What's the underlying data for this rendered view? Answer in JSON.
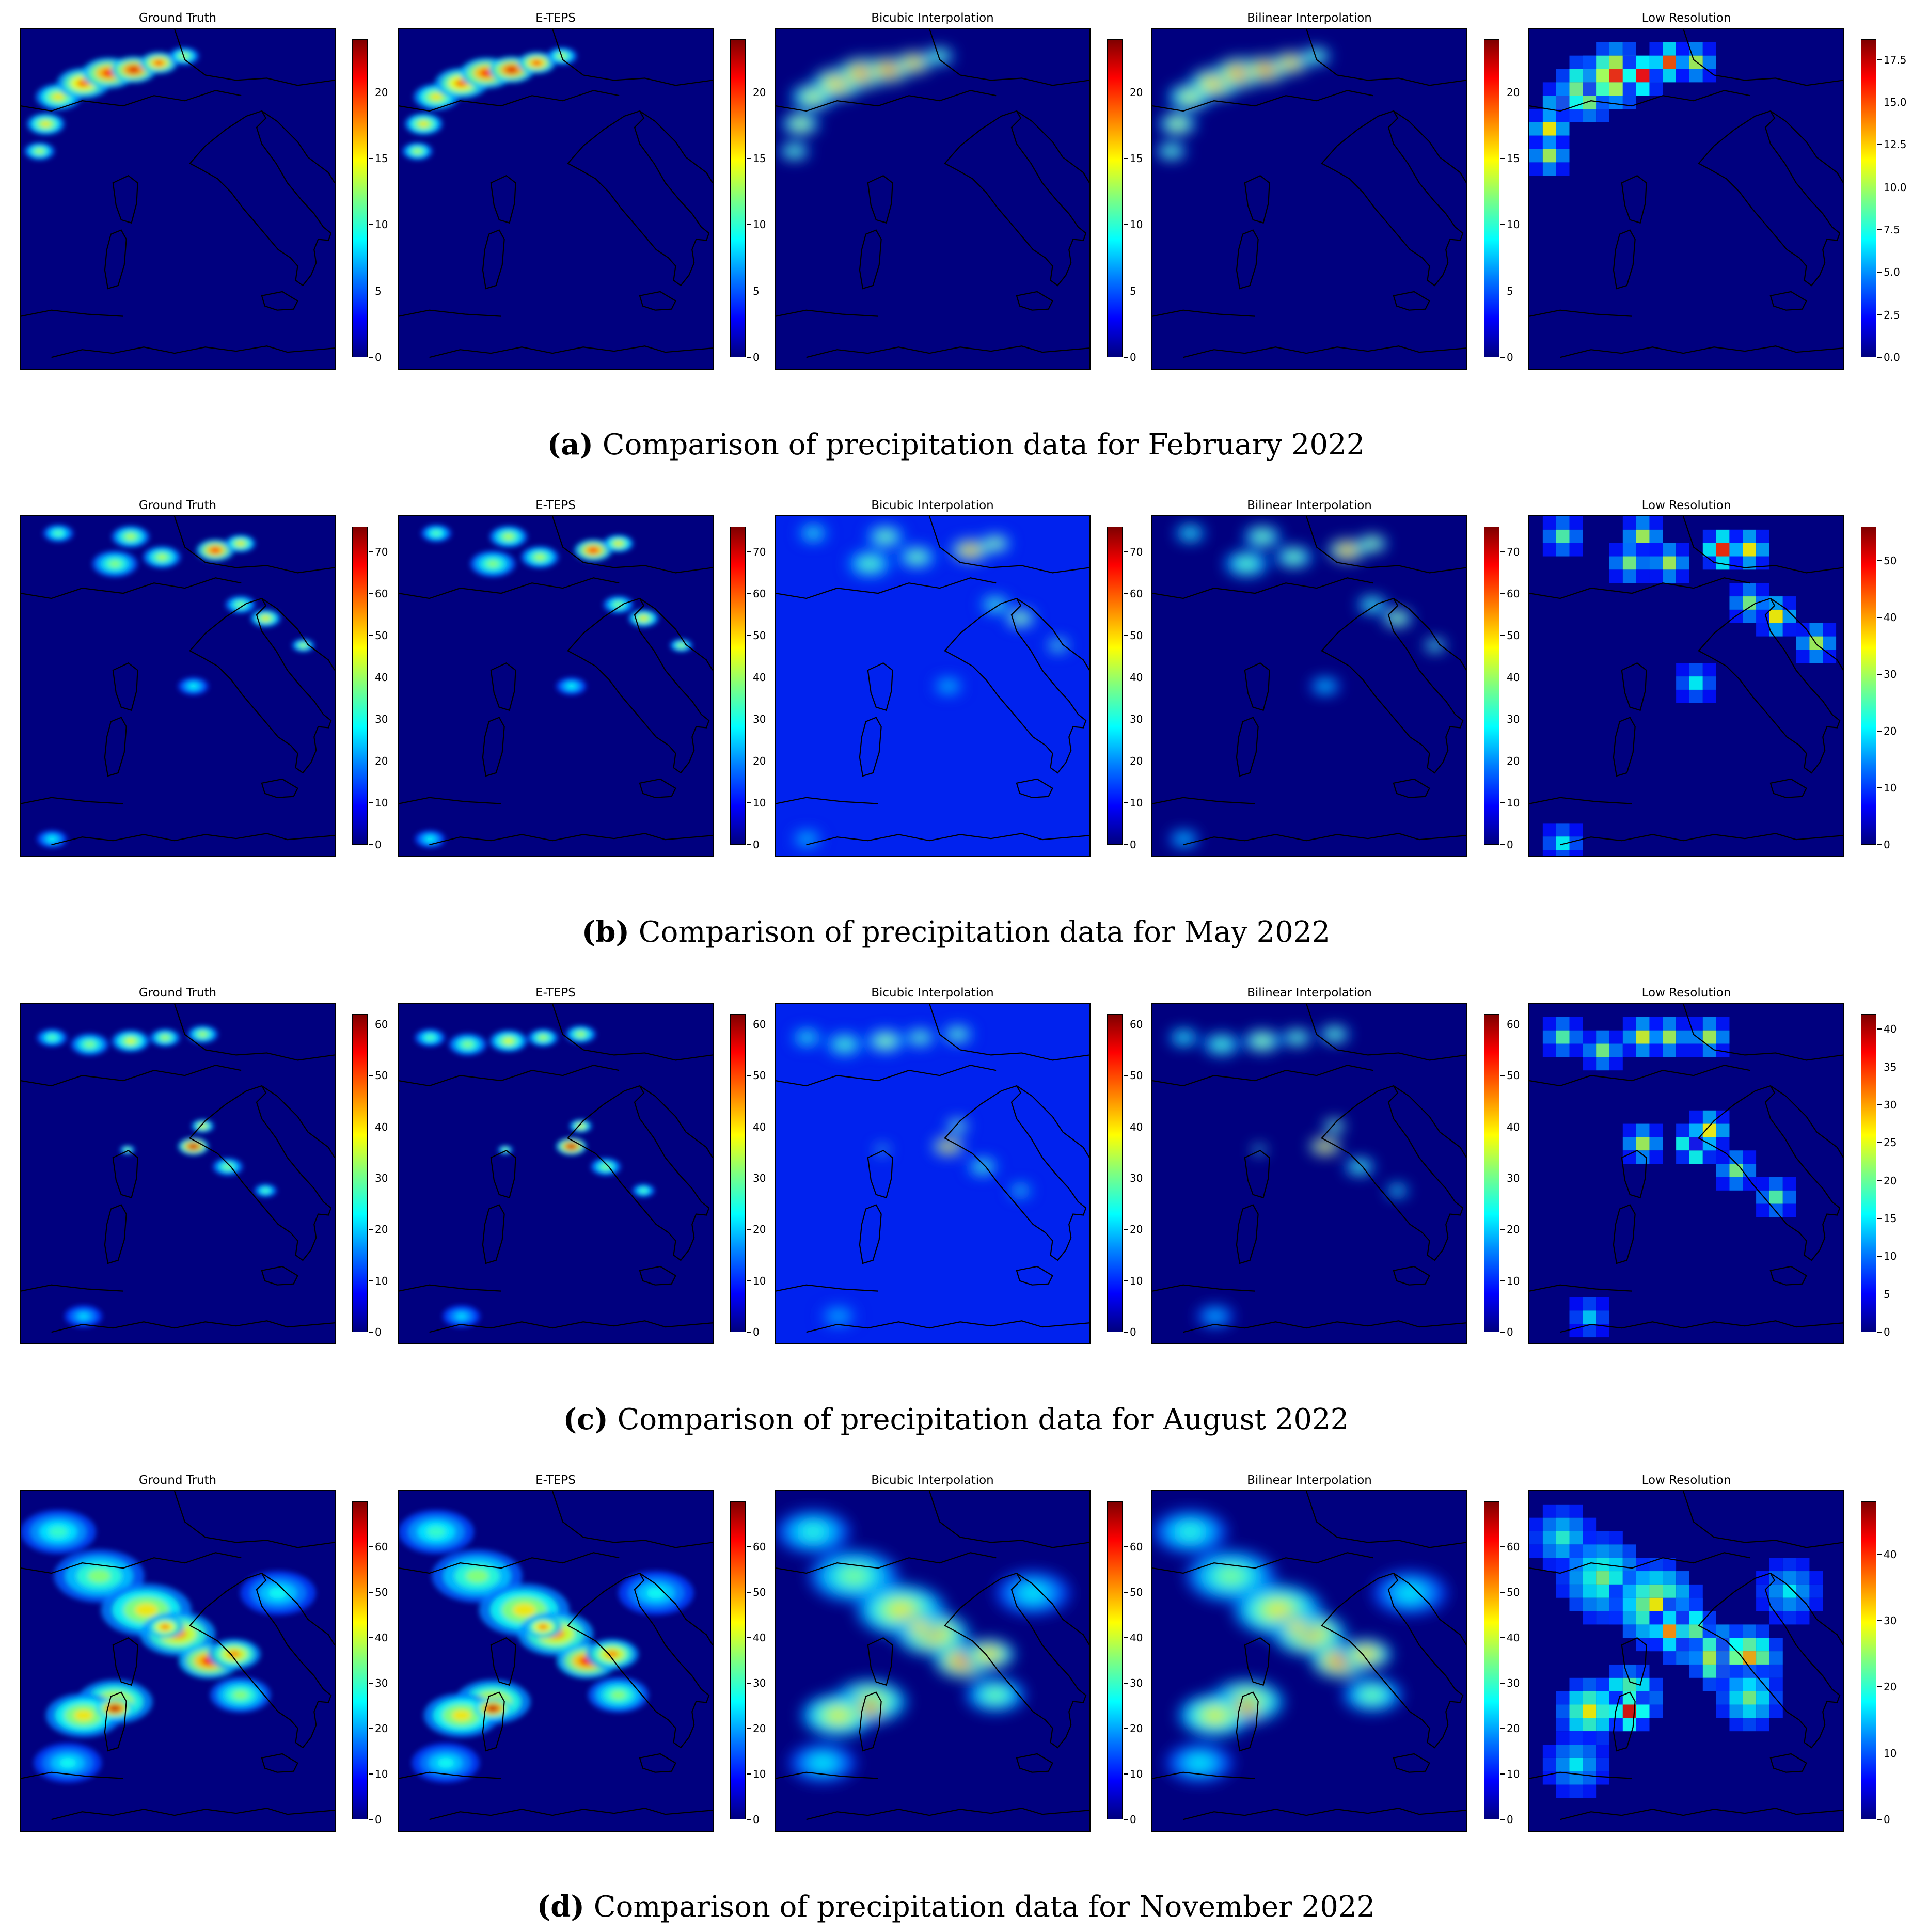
{
  "figure": {
    "captions": [
      {
        "label": "a",
        "text": "Comparison of precipitation data for February 2022"
      },
      {
        "label": "b",
        "text": "Comparison of precipitation data for May 2022"
      },
      {
        "label": "c",
        "text": "Comparison of precipitation data for August 2022"
      },
      {
        "label": "d",
        "text": "Comparison of precipitation data for November 2022"
      }
    ]
  },
  "colors": {
    "background": "#00007f",
    "bicubic_background": "#0022ee",
    "coastline": "#000000"
  },
  "chart_data": [
    {
      "type": "heatmap",
      "colormap": "jet",
      "month": "February 2022",
      "panels": [
        {
          "title": "Ground Truth",
          "cmax": 24,
          "ticks": [
            "0",
            "5",
            "10",
            "15",
            "20"
          ]
        },
        {
          "title": "E-TEPS",
          "cmax": 24,
          "ticks": [
            "0",
            "5",
            "10",
            "15",
            "20"
          ]
        },
        {
          "title": "Bicubic Interpolation",
          "cmax": 24,
          "ticks": [
            "0",
            "5",
            "10",
            "15",
            "20"
          ]
        },
        {
          "title": "Bilinear Interpolation",
          "cmax": 24,
          "ticks": [
            "0",
            "5",
            "10",
            "15",
            "20"
          ]
        },
        {
          "title": "Low Resolution",
          "cmax": 18.7,
          "ticks": [
            "0.0",
            "2.5",
            "5.0",
            "7.5",
            "10.0",
            "12.5",
            "15.0",
            "17.5"
          ]
        }
      ]
    },
    {
      "type": "heatmap",
      "colormap": "jet",
      "month": "May 2022",
      "panels": [
        {
          "title": "Ground Truth",
          "cmax": 76,
          "ticks": [
            "0",
            "10",
            "20",
            "30",
            "40",
            "50",
            "60",
            "70"
          ]
        },
        {
          "title": "E-TEPS",
          "cmax": 76,
          "ticks": [
            "0",
            "10",
            "20",
            "30",
            "40",
            "50",
            "60",
            "70"
          ]
        },
        {
          "title": "Bicubic Interpolation",
          "cmax": 76,
          "ticks": [
            "0",
            "10",
            "20",
            "30",
            "40",
            "50",
            "60",
            "70"
          ]
        },
        {
          "title": "Bilinear Interpolation",
          "cmax": 76,
          "ticks": [
            "0",
            "10",
            "20",
            "30",
            "40",
            "50",
            "60",
            "70"
          ]
        },
        {
          "title": "Low Resolution",
          "cmax": 56,
          "ticks": [
            "0",
            "10",
            "20",
            "30",
            "40",
            "50"
          ]
        }
      ]
    },
    {
      "type": "heatmap",
      "colormap": "jet",
      "month": "August 2022",
      "panels": [
        {
          "title": "Ground Truth",
          "cmax": 62,
          "ticks": [
            "0",
            "10",
            "20",
            "30",
            "40",
            "50",
            "60"
          ]
        },
        {
          "title": "E-TEPS",
          "cmax": 62,
          "ticks": [
            "0",
            "10",
            "20",
            "30",
            "40",
            "50",
            "60"
          ]
        },
        {
          "title": "Bicubic Interpolation",
          "cmax": 62,
          "ticks": [
            "0",
            "10",
            "20",
            "30",
            "40",
            "50",
            "60"
          ]
        },
        {
          "title": "Bilinear Interpolation",
          "cmax": 62,
          "ticks": [
            "0",
            "10",
            "20",
            "30",
            "40",
            "50",
            "60"
          ]
        },
        {
          "title": "Low Resolution",
          "cmax": 42,
          "ticks": [
            "0",
            "5",
            "10",
            "15",
            "20",
            "25",
            "30",
            "35",
            "40"
          ]
        }
      ]
    },
    {
      "type": "heatmap",
      "colormap": "jet",
      "month": "November 2022",
      "panels": [
        {
          "title": "Ground Truth",
          "cmax": 70,
          "ticks": [
            "0",
            "10",
            "20",
            "30",
            "40",
            "50",
            "60"
          ]
        },
        {
          "title": "E-TEPS",
          "cmax": 70,
          "ticks": [
            "0",
            "10",
            "20",
            "30",
            "40",
            "50",
            "60"
          ]
        },
        {
          "title": "Bicubic Interpolation",
          "cmax": 70,
          "ticks": [
            "0",
            "10",
            "20",
            "30",
            "40",
            "50",
            "60"
          ]
        },
        {
          "title": "Bilinear Interpolation",
          "cmax": 70,
          "ticks": [
            "0",
            "10",
            "20",
            "30",
            "40",
            "50",
            "60"
          ]
        },
        {
          "title": "Low Resolution",
          "cmax": 48,
          "ticks": [
            "0",
            "10",
            "20",
            "30",
            "40"
          ]
        }
      ]
    }
  ]
}
